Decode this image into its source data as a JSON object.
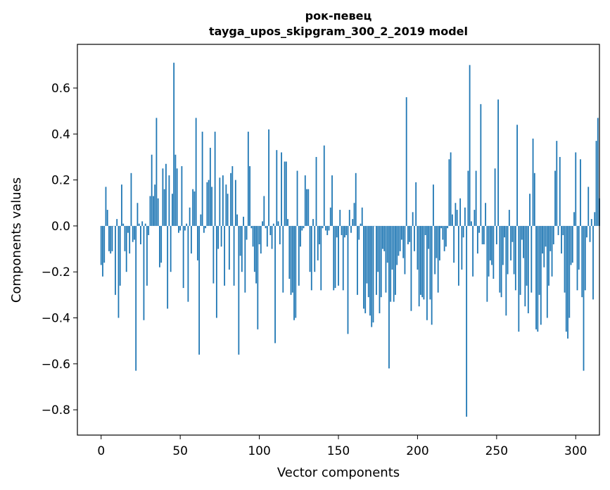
{
  "chart_data": {
    "type": "bar",
    "title": "рок-певец",
    "subtitle": "tayga_upos_skipgram_300_2_2019 model",
    "xlabel": "Vector components",
    "ylabel": "Components values",
    "xlim": [
      -15,
      315
    ],
    "ylim": [
      -0.91,
      0.79
    ],
    "xticks": [
      0,
      50,
      100,
      150,
      200,
      250,
      300
    ],
    "xtick_labels": [
      "0",
      "50",
      "100",
      "150",
      "200",
      "250",
      "300"
    ],
    "yticks": [
      -0.8,
      -0.6,
      -0.4,
      -0.2,
      0.0,
      0.2,
      0.4,
      0.6
    ],
    "ytick_labels": [
      "−0.8",
      "−0.6",
      "−0.4",
      "−0.2",
      "0.0",
      "0.2",
      "0.4",
      "0.6"
    ],
    "bar_color": "#1f77b4",
    "series": [
      {
        "name": "рок-певец",
        "values": [
          -0.17,
          -0.22,
          -0.16,
          0.17,
          0.07,
          -0.11,
          -0.12,
          -0.11,
          0.0,
          -0.3,
          0.03,
          -0.4,
          -0.26,
          0.18,
          0.01,
          -0.11,
          -0.2,
          -0.03,
          -0.12,
          0.23,
          -0.07,
          -0.06,
          -0.63,
          0.1,
          0.01,
          -0.08,
          0.02,
          -0.41,
          0.01,
          -0.26,
          -0.04,
          0.13,
          0.31,
          0.13,
          0.18,
          0.47,
          0.12,
          -0.18,
          -0.16,
          0.25,
          0.16,
          0.27,
          -0.36,
          0.22,
          -0.2,
          0.14,
          0.71,
          0.31,
          0.25,
          -0.03,
          -0.02,
          0.26,
          -0.27,
          -0.02,
          0.01,
          -0.33,
          0.08,
          -0.12,
          0.16,
          0.15,
          0.47,
          -0.15,
          -0.56,
          0.05,
          0.41,
          -0.03,
          -0.01,
          0.19,
          0.2,
          0.34,
          0.17,
          -0.25,
          0.41,
          -0.4,
          -0.1,
          0.21,
          -0.09,
          0.22,
          -0.26,
          0.18,
          0.14,
          -0.19,
          0.23,
          0.26,
          -0.26,
          0.2,
          0.05,
          -0.56,
          -0.13,
          -0.2,
          0.04,
          -0.29,
          -0.06,
          0.41,
          0.26,
          -0.01,
          -0.09,
          -0.2,
          -0.25,
          -0.45,
          -0.08,
          -0.12,
          0.02,
          0.13,
          -0.01,
          -0.09,
          0.42,
          -0.04,
          -0.1,
          0.01,
          -0.51,
          0.33,
          0.02,
          -0.08,
          0.32,
          -0.29,
          0.28,
          0.28,
          0.03,
          -0.23,
          -0.3,
          -0.29,
          -0.41,
          -0.4,
          0.24,
          -0.26,
          -0.09,
          -0.02,
          -0.01,
          0.22,
          0.16,
          0.16,
          -0.2,
          -0.28,
          0.03,
          -0.2,
          0.3,
          -0.15,
          -0.08,
          -0.28,
          -0.01,
          0.35,
          -0.02,
          -0.04,
          -0.02,
          0.08,
          0.22,
          -0.28,
          -0.27,
          -0.05,
          -0.26,
          0.07,
          -0.04,
          -0.28,
          -0.05,
          -0.04,
          -0.47,
          0.07,
          -0.03,
          0.03,
          0.1,
          0.23,
          -0.3,
          -0.06,
          0.01,
          0.08,
          -0.36,
          -0.38,
          -0.25,
          -0.31,
          -0.39,
          -0.44,
          -0.42,
          0.0,
          -0.3,
          -0.2,
          -0.38,
          -0.31,
          -0.1,
          -0.11,
          -0.29,
          -0.16,
          -0.62,
          -0.33,
          -0.19,
          -0.33,
          -0.3,
          -0.17,
          -0.13,
          -0.11,
          -0.06,
          -0.14,
          -0.21,
          0.56,
          -0.08,
          -0.07,
          -0.37,
          0.06,
          -0.11,
          0.19,
          -0.19,
          -0.35,
          -0.3,
          -0.31,
          -0.32,
          -0.04,
          -0.41,
          -0.1,
          -0.32,
          -0.43,
          0.18,
          -0.21,
          -0.14,
          -0.29,
          -0.15,
          -0.01,
          -0.06,
          -0.11,
          -0.09,
          -0.01,
          0.29,
          0.32,
          0.05,
          -0.16,
          0.1,
          0.07,
          -0.26,
          0.12,
          -0.19,
          -0.05,
          0.08,
          -0.83,
          0.24,
          0.7,
          0.02,
          -0.22,
          0.07,
          0.24,
          -0.12,
          -0.03,
          0.53,
          -0.08,
          -0.08,
          0.1,
          -0.33,
          -0.22,
          -0.15,
          -0.17,
          -0.23,
          0.25,
          -0.08,
          0.55,
          -0.29,
          -0.31,
          -0.17,
          -0.05,
          -0.39,
          -0.21,
          0.07,
          -0.15,
          -0.07,
          -0.21,
          -0.28,
          0.44,
          -0.46,
          -0.3,
          -0.06,
          -0.14,
          -0.35,
          -0.26,
          -0.38,
          0.14,
          -0.29,
          0.38,
          0.23,
          -0.45,
          -0.46,
          -0.3,
          -0.43,
          -0.12,
          -0.18,
          -0.09,
          -0.4,
          -0.26,
          -0.11,
          -0.22,
          -0.08,
          0.24,
          0.37,
          -0.04,
          0.3,
          -0.12,
          -0.04,
          -0.29,
          -0.46,
          -0.49,
          -0.4,
          -0.17,
          -0.16,
          0.06,
          0.32,
          -0.28,
          -0.19,
          0.29,
          -0.31,
          -0.63,
          -0.28,
          -0.05,
          0.17,
          -0.07,
          0.03,
          -0.32,
          0.06,
          0.37,
          0.47,
          0.12
        ]
      }
    ]
  }
}
